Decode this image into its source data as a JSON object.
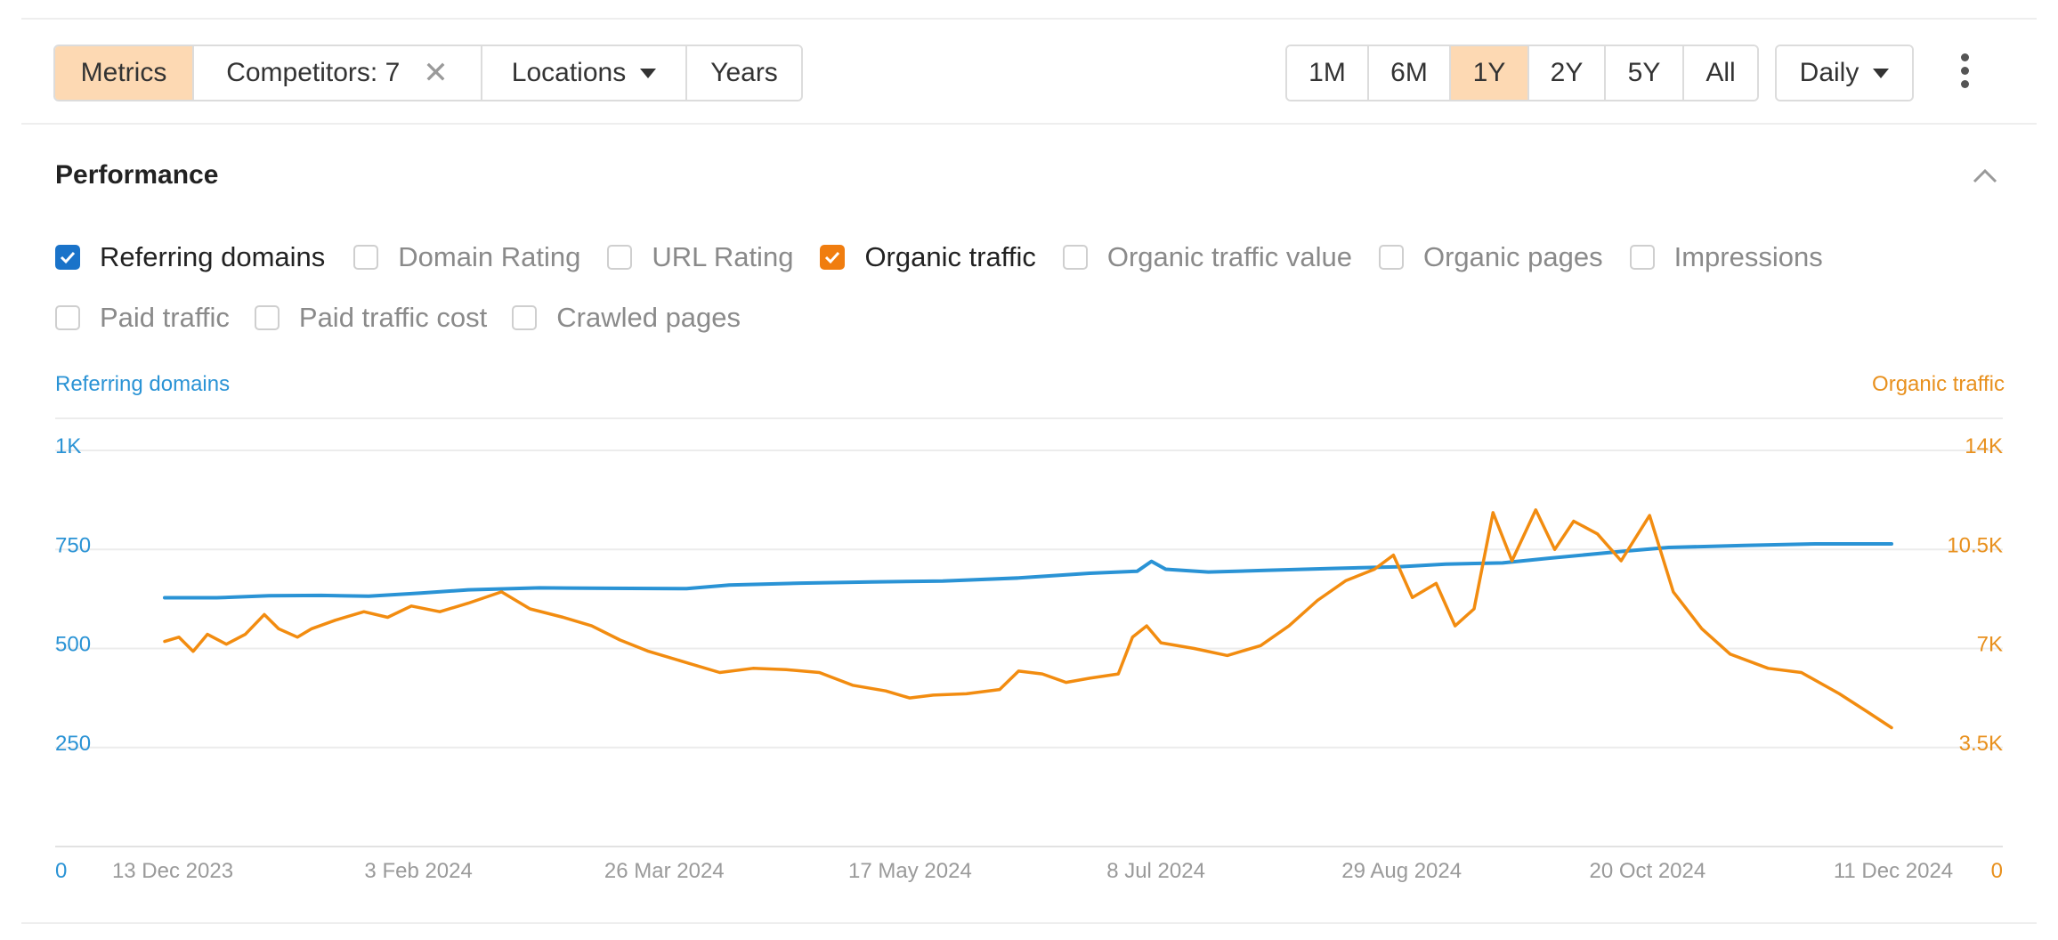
{
  "toolbar": {
    "metrics_label": "Metrics",
    "competitors_label": "Competitors: 7",
    "locations_label": "Locations",
    "years_label": "Years",
    "ranges": [
      "1M",
      "6M",
      "1Y",
      "2Y",
      "5Y",
      "All"
    ],
    "active_range": "1Y",
    "granularity_label": "Daily"
  },
  "section": {
    "title": "Performance"
  },
  "metrics_checkboxes": [
    {
      "label": "Referring domains",
      "checked": true,
      "color": "#1a73c9"
    },
    {
      "label": "Domain Rating",
      "checked": false
    },
    {
      "label": "URL Rating",
      "checked": false
    },
    {
      "label": "Organic traffic",
      "checked": true,
      "color": "#f07d0f"
    },
    {
      "label": "Organic traffic value",
      "checked": false
    },
    {
      "label": "Organic pages",
      "checked": false
    },
    {
      "label": "Impressions",
      "checked": false
    },
    {
      "label": "Paid traffic",
      "checked": false
    },
    {
      "label": "Paid traffic cost",
      "checked": false
    },
    {
      "label": "Crawled pages",
      "checked": false
    }
  ],
  "colors": {
    "referring_domains": "#2a93d5",
    "organic_traffic": "#f28c10",
    "accent_active": "#fdd9b3"
  },
  "chart_data": {
    "type": "line",
    "left_axis_title": "Referring domains",
    "right_axis_title": "Organic traffic",
    "left_ticks": [
      "0",
      "250",
      "500",
      "750",
      "1K"
    ],
    "right_ticks": [
      "0",
      "3.5K",
      "7K",
      "10.5K",
      "14K"
    ],
    "left_ylim": [
      0,
      1000
    ],
    "right_ylim": [
      0,
      14000
    ],
    "x_ticks": [
      "13 Dec 2023",
      "3 Feb 2024",
      "26 Mar 2024",
      "17 May 2024",
      "8 Jul 2024",
      "29 Aug 2024",
      "20 Oct 2024",
      "11 Dec 2024"
    ],
    "x_range": [
      "2023-12-13",
      "2024-12-11"
    ],
    "grid": true,
    "series": [
      {
        "name": "Referring domains",
        "axis": "left",
        "points": [
          [
            "2023-12-13",
            628
          ],
          [
            "2023-12-24",
            628
          ],
          [
            "2024-01-04",
            633
          ],
          [
            "2024-01-15",
            634
          ],
          [
            "2024-01-25",
            632
          ],
          [
            "2024-02-05",
            640
          ],
          [
            "2024-02-15",
            648
          ],
          [
            "2024-03-01",
            653
          ],
          [
            "2024-03-15",
            652
          ],
          [
            "2024-04-01",
            651
          ],
          [
            "2024-04-10",
            660
          ],
          [
            "2024-04-25",
            665
          ],
          [
            "2024-05-10",
            668
          ],
          [
            "2024-05-25",
            670
          ],
          [
            "2024-06-10",
            678
          ],
          [
            "2024-06-25",
            690
          ],
          [
            "2024-07-05",
            695
          ],
          [
            "2024-07-08",
            720
          ],
          [
            "2024-07-11",
            700
          ],
          [
            "2024-07-20",
            693
          ],
          [
            "2024-08-01",
            697
          ],
          [
            "2024-08-15",
            702
          ],
          [
            "2024-08-29",
            706
          ],
          [
            "2024-09-08",
            713
          ],
          [
            "2024-09-20",
            716
          ],
          [
            "2024-09-30",
            728
          ],
          [
            "2024-10-15",
            745
          ],
          [
            "2024-10-25",
            755
          ],
          [
            "2024-11-10",
            760
          ],
          [
            "2024-11-25",
            764
          ],
          [
            "2024-12-11",
            764
          ]
        ]
      },
      {
        "name": "Organic traffic",
        "axis": "right",
        "points": [
          [
            "2023-12-13",
            7250
          ],
          [
            "2023-12-16",
            7400
          ],
          [
            "2023-12-19",
            6900
          ],
          [
            "2023-12-22",
            7500
          ],
          [
            "2023-12-26",
            7150
          ],
          [
            "2023-12-30",
            7500
          ],
          [
            "2024-01-03",
            8200
          ],
          [
            "2024-01-06",
            7700
          ],
          [
            "2024-01-10",
            7400
          ],
          [
            "2024-01-13",
            7700
          ],
          [
            "2024-01-18",
            8000
          ],
          [
            "2024-01-24",
            8300
          ],
          [
            "2024-01-29",
            8100
          ],
          [
            "2024-02-03",
            8500
          ],
          [
            "2024-02-09",
            8300
          ],
          [
            "2024-02-15",
            8600
          ],
          [
            "2024-02-22",
            9000
          ],
          [
            "2024-02-28",
            8400
          ],
          [
            "2024-03-06",
            8100
          ],
          [
            "2024-03-12",
            7800
          ],
          [
            "2024-03-18",
            7300
          ],
          [
            "2024-03-24",
            6900
          ],
          [
            "2024-04-01",
            6500
          ],
          [
            "2024-04-08",
            6150
          ],
          [
            "2024-04-15",
            6300
          ],
          [
            "2024-04-22",
            6250
          ],
          [
            "2024-04-29",
            6150
          ],
          [
            "2024-05-06",
            5700
          ],
          [
            "2024-05-13",
            5500
          ],
          [
            "2024-05-18",
            5250
          ],
          [
            "2024-05-23",
            5350
          ],
          [
            "2024-05-30",
            5400
          ],
          [
            "2024-06-06",
            5550
          ],
          [
            "2024-06-10",
            6200
          ],
          [
            "2024-06-15",
            6100
          ],
          [
            "2024-06-20",
            5800
          ],
          [
            "2024-06-25",
            5950
          ],
          [
            "2024-07-01",
            6100
          ],
          [
            "2024-07-04",
            7400
          ],
          [
            "2024-07-07",
            7800
          ],
          [
            "2024-07-10",
            7200
          ],
          [
            "2024-07-17",
            7000
          ],
          [
            "2024-07-24",
            6750
          ],
          [
            "2024-07-31",
            7100
          ],
          [
            "2024-08-06",
            7800
          ],
          [
            "2024-08-12",
            8700
          ],
          [
            "2024-08-18",
            9400
          ],
          [
            "2024-08-24",
            9800
          ],
          [
            "2024-08-28",
            10300
          ],
          [
            "2024-09-01",
            8800
          ],
          [
            "2024-09-06",
            9300
          ],
          [
            "2024-09-10",
            7800
          ],
          [
            "2024-09-14",
            8400
          ],
          [
            "2024-09-18",
            11800
          ],
          [
            "2024-09-22",
            10100
          ],
          [
            "2024-09-27",
            11900
          ],
          [
            "2024-10-01",
            10500
          ],
          [
            "2024-10-05",
            11500
          ],
          [
            "2024-10-10",
            11050
          ],
          [
            "2024-10-15",
            10100
          ],
          [
            "2024-10-21",
            11700
          ],
          [
            "2024-10-26",
            9000
          ],
          [
            "2024-11-01",
            7700
          ],
          [
            "2024-11-07",
            6800
          ],
          [
            "2024-11-15",
            6300
          ],
          [
            "2024-11-22",
            6150
          ],
          [
            "2024-11-30",
            5400
          ],
          [
            "2024-12-06",
            4750
          ],
          [
            "2024-12-11",
            4200
          ]
        ]
      }
    ]
  }
}
